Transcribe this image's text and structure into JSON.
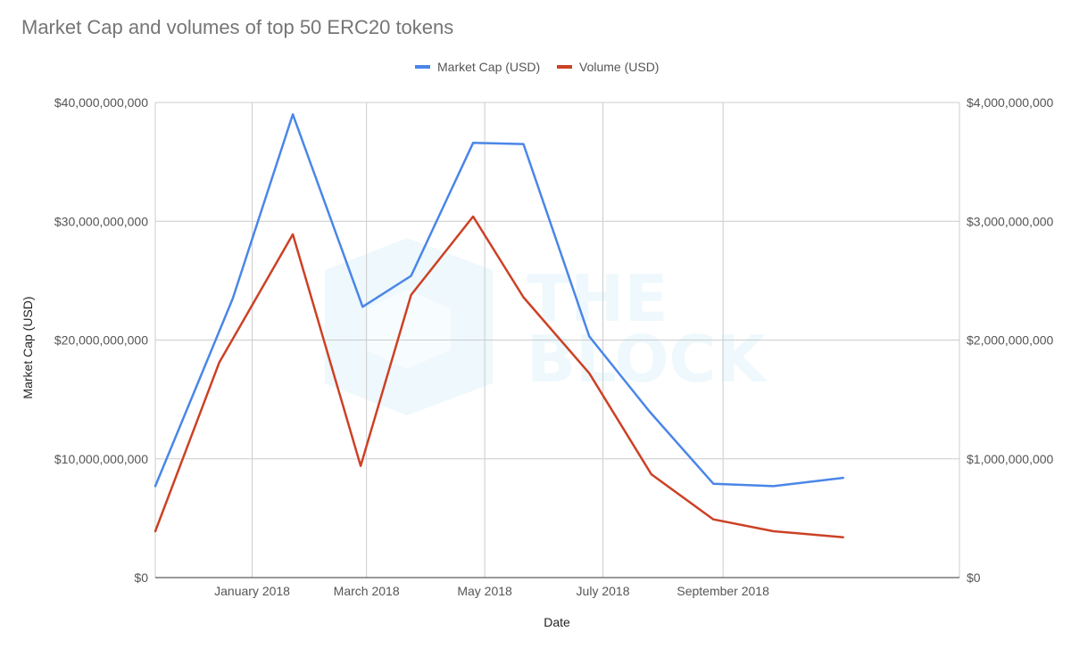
{
  "chart_data": {
    "type": "line",
    "title": "Market Cap and volumes of top 50 ERC20 tokens",
    "xlabel": "Date",
    "ylabel": "Market Cap (USD)",
    "ylabel_right": "",
    "x": [
      "2017-11-12",
      "2017-12-22",
      "2018-01-31",
      "2018-03-12",
      "2018-04-21",
      "2018-05-31",
      "2018-06-30",
      "2018-08-09",
      "2018-09-18",
      "2018-10-28",
      "2018-12-07",
      "2019-01-01"
    ],
    "x_min": "2017-11-12",
    "x_max": "2019-01-01",
    "x_ticks": [
      {
        "date": "2018-01-01",
        "label": "January 2018"
      },
      {
        "date": "2018-03-01",
        "label": "March 2018"
      },
      {
        "date": "2018-05-01",
        "label": "May 2018"
      },
      {
        "date": "2018-07-01",
        "label": "July 2018"
      },
      {
        "date": "2018-09-01",
        "label": "September 2018"
      }
    ],
    "series": [
      {
        "name": "Market Cap (USD)",
        "axis": "left",
        "color": "#4a86e8",
        "points": [
          [
            "2017-11-12",
            7700000000
          ],
          [
            "2017-12-22",
            23500000000
          ],
          [
            "2018-01-22",
            39000000000
          ],
          [
            "2018-02-27",
            22800000000
          ],
          [
            "2018-03-24",
            25400000000
          ],
          [
            "2018-04-25",
            36600000000
          ],
          [
            "2018-05-21",
            36500000000
          ],
          [
            "2018-06-24",
            20300000000
          ],
          [
            "2018-07-25",
            14000000000
          ],
          [
            "2018-08-27",
            7900000000
          ],
          [
            "2018-09-27",
            7700000000
          ],
          [
            "2018-11-02",
            8400000000
          ]
        ]
      },
      {
        "name": "Volume (USD)",
        "axis": "right",
        "color": "#cc4125",
        "points": [
          [
            "2017-11-12",
            390000000
          ],
          [
            "2017-12-15",
            1810000000
          ],
          [
            "2018-01-22",
            2890000000
          ],
          [
            "2018-02-26",
            940000000
          ],
          [
            "2018-03-24",
            2380000000
          ],
          [
            "2018-04-25",
            3040000000
          ],
          [
            "2018-05-21",
            2360000000
          ],
          [
            "2018-06-24",
            1720000000
          ],
          [
            "2018-07-26",
            870000000
          ],
          [
            "2018-08-27",
            490000000
          ],
          [
            "2018-09-27",
            390000000
          ],
          [
            "2018-11-02",
            340000000
          ]
        ]
      }
    ],
    "y_left": {
      "ylim": [
        0,
        40000000000
      ],
      "ticks": [
        0,
        10000000000,
        20000000000,
        30000000000,
        40000000000
      ],
      "tick_labels": [
        "$0",
        "$10,000,000,000",
        "$20,000,000,000",
        "$30,000,000,000",
        "$40,000,000,000"
      ]
    },
    "y_right": {
      "ylim": [
        0,
        4000000000
      ],
      "ticks": [
        0,
        1000000000,
        2000000000,
        3000000000,
        4000000000
      ],
      "tick_labels": [
        "$0",
        "$1,000,000,000",
        "$2,000,000,000",
        "$3,000,000,000",
        "$4,000,000,000"
      ]
    },
    "grid": true,
    "legend": "top-center",
    "watermark": {
      "lines": [
        "THE",
        "BLOCK"
      ],
      "color": "#eef8fd"
    }
  }
}
